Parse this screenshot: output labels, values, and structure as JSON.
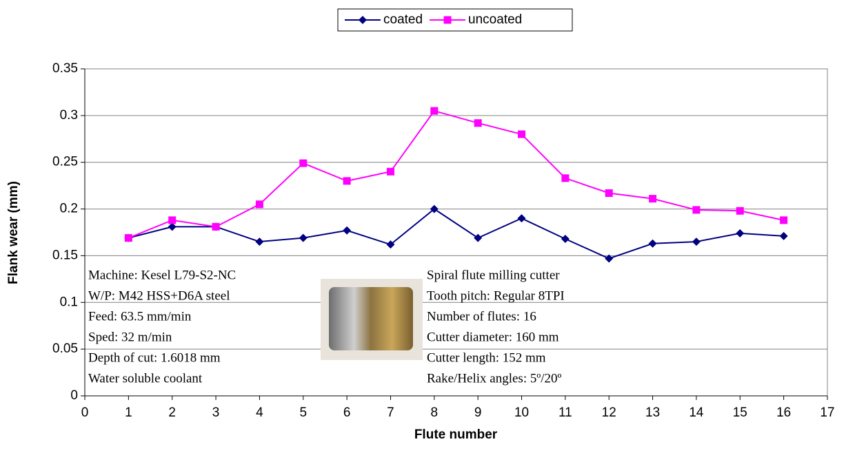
{
  "chart_data": {
    "type": "line",
    "x_label": "Flute number",
    "y_label": "Flank wear (mm)",
    "x": [
      1,
      2,
      3,
      4,
      5,
      6,
      7,
      8,
      9,
      10,
      11,
      12,
      13,
      14,
      15,
      16
    ],
    "series": [
      {
        "name": "coated",
        "color": "#000080",
        "marker": "diamond",
        "values": [
          0.169,
          0.181,
          0.181,
          0.165,
          0.169,
          0.177,
          0.162,
          0.2,
          0.169,
          0.19,
          0.168,
          0.147,
          0.163,
          0.165,
          0.174,
          0.171
        ]
      },
      {
        "name": "uncoated",
        "color": "#ff00ff",
        "marker": "square",
        "values": [
          0.169,
          0.188,
          0.181,
          0.205,
          0.249,
          0.23,
          0.24,
          0.305,
          0.292,
          0.28,
          0.233,
          0.217,
          0.211,
          0.199,
          0.198,
          0.188
        ]
      }
    ],
    "xlim": [
      0,
      17
    ],
    "xticks": [
      0,
      1,
      2,
      3,
      4,
      5,
      6,
      7,
      8,
      9,
      10,
      11,
      12,
      13,
      14,
      15,
      16,
      17
    ],
    "ylim": [
      0,
      0.35
    ],
    "yticks": [
      0,
      0.05,
      0.1,
      0.15,
      0.2,
      0.25,
      0.3,
      0.35
    ],
    "grid": true,
    "legend": "top",
    "annotations": {
      "left": [
        "Machine: Kesel L79-S2-NC",
        "W/P: M42 HSS+D6A steel",
        "Feed: 63.5 mm/min",
        "Sped: 32 m/min",
        "Depth of cut: 1.6018 mm",
        "Water soluble coolant"
      ],
      "right": [
        "Spiral flute milling cutter",
        "Tooth pitch: Regular 8TPI",
        "Number of flutes: 16",
        "Cutter diameter: 160 mm",
        "Cutter length: 152 mm",
        "Rake/Helix angles: 5º/20º"
      ]
    }
  }
}
